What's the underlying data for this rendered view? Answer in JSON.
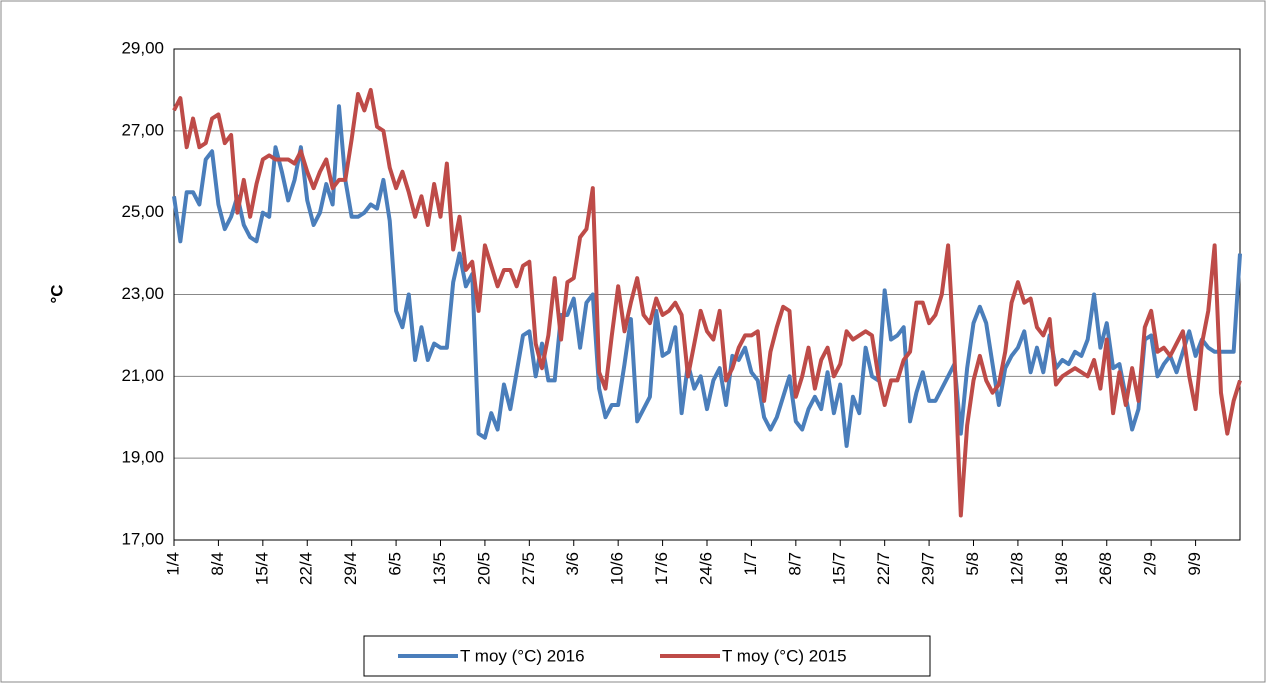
{
  "chart_data": {
    "type": "line",
    "y_label": "°C",
    "categories": [
      "1/4",
      null,
      null,
      null,
      null,
      null,
      null,
      "8/4",
      null,
      null,
      null,
      null,
      null,
      null,
      "15/4",
      null,
      null,
      null,
      null,
      null,
      null,
      "22/4",
      null,
      null,
      null,
      null,
      null,
      null,
      "29/4",
      null,
      null,
      null,
      null,
      null,
      null,
      "6/5",
      null,
      null,
      null,
      null,
      null,
      null,
      "13/5",
      null,
      null,
      null,
      null,
      null,
      null,
      "20/5",
      null,
      null,
      null,
      null,
      null,
      null,
      "27/5",
      null,
      null,
      null,
      null,
      null,
      null,
      "3/6",
      null,
      null,
      null,
      null,
      null,
      null,
      "10/6",
      null,
      null,
      null,
      null,
      null,
      null,
      "17/6",
      null,
      null,
      null,
      null,
      null,
      null,
      "24/6",
      null,
      null,
      null,
      null,
      null,
      null,
      "1/7",
      null,
      null,
      null,
      null,
      null,
      null,
      "8/7",
      null,
      null,
      null,
      null,
      null,
      null,
      "15/7",
      null,
      null,
      null,
      null,
      null,
      null,
      "22/7",
      null,
      null,
      null,
      null,
      null,
      null,
      "29/7",
      null,
      null,
      null,
      null,
      null,
      null,
      "5/8",
      null,
      null,
      null,
      null,
      null,
      null,
      "12/8",
      null,
      null,
      null,
      null,
      null,
      null,
      "19/8",
      null,
      null,
      null,
      null,
      null,
      null,
      "26/8",
      null,
      null,
      null,
      null,
      null,
      null,
      "2/9",
      null,
      null,
      null,
      null,
      null,
      null,
      "9/9",
      null,
      null,
      null,
      null,
      null,
      null,
      null
    ],
    "series": [
      {
        "name": "T moy (°C) 2016",
        "color": "#4a7ebb",
        "values": [
          25.4,
          24.3,
          25.5,
          25.5,
          25.2,
          26.3,
          26.5,
          25.2,
          24.6,
          24.9,
          25.4,
          24.7,
          24.4,
          24.3,
          25.0,
          24.9,
          26.6,
          26.0,
          25.3,
          25.8,
          26.6,
          25.3,
          24.7,
          25.0,
          25.7,
          25.2,
          27.6,
          25.8,
          24.9,
          24.9,
          25.0,
          25.2,
          25.1,
          25.8,
          24.8,
          22.6,
          22.2,
          23.0,
          21.4,
          22.2,
          21.4,
          21.8,
          21.7,
          21.7,
          23.3,
          24.0,
          23.2,
          23.5,
          19.6,
          19.5,
          20.1,
          19.7,
          20.8,
          20.2,
          21.1,
          22.0,
          22.1,
          21.0,
          21.8,
          20.9,
          20.9,
          22.5,
          22.5,
          22.9,
          21.7,
          22.8,
          23.0,
          20.7,
          20.0,
          20.3,
          20.3,
          21.3,
          22.4,
          19.9,
          20.2,
          20.5,
          22.6,
          21.5,
          21.6,
          22.2,
          20.1,
          21.3,
          20.7,
          21.0,
          20.2,
          20.9,
          21.2,
          20.3,
          21.5,
          21.4,
          21.7,
          21.1,
          20.9,
          20.0,
          19.7,
          20.0,
          20.5,
          21.0,
          19.9,
          19.7,
          20.2,
          20.5,
          20.2,
          21.1,
          20.1,
          20.8,
          19.3,
          20.5,
          20.1,
          21.7,
          21.0,
          20.9,
          23.1,
          21.9,
          22.0,
          22.2,
          19.9,
          20.6,
          21.1,
          20.4,
          20.4,
          20.7,
          21.0,
          21.3,
          19.6,
          21.2,
          22.3,
          22.7,
          22.3,
          21.3,
          20.3,
          21.2,
          21.5,
          21.7,
          22.1,
          21.1,
          21.7,
          21.1,
          22.0,
          21.2,
          21.4,
          21.3,
          21.6,
          21.5,
          21.9,
          23.0,
          21.7,
          22.3,
          21.2,
          21.3,
          20.5,
          19.7,
          20.2,
          21.9,
          22.0,
          21.0,
          21.3,
          21.5,
          21.1,
          21.6,
          22.1,
          21.5,
          21.9,
          21.7,
          21.6,
          21.6,
          21.6,
          21.6,
          24.0
        ]
      },
      {
        "name": "T moy (°C) 2015",
        "color": "#be4b48",
        "values": [
          27.5,
          27.8,
          26.6,
          27.3,
          26.6,
          26.7,
          27.3,
          27.4,
          26.7,
          26.9,
          25.0,
          25.8,
          24.9,
          25.7,
          26.3,
          26.4,
          26.3,
          26.3,
          26.3,
          26.2,
          26.5,
          26.0,
          25.6,
          26.0,
          26.3,
          25.6,
          25.8,
          25.8,
          26.8,
          27.9,
          27.5,
          28.0,
          27.1,
          27.0,
          26.1,
          25.6,
          26.0,
          25.5,
          24.9,
          25.4,
          24.7,
          25.7,
          24.9,
          26.2,
          24.1,
          24.9,
          23.6,
          23.8,
          22.6,
          24.2,
          23.7,
          23.2,
          23.6,
          23.6,
          23.2,
          23.7,
          23.8,
          21.8,
          21.2,
          22.0,
          23.4,
          21.9,
          23.3,
          23.4,
          24.4,
          24.6,
          25.6,
          21.1,
          20.7,
          22.0,
          23.2,
          22.1,
          22.8,
          23.4,
          22.5,
          22.3,
          22.9,
          22.5,
          22.6,
          22.8,
          22.5,
          21.0,
          21.8,
          22.6,
          22.1,
          21.9,
          22.6,
          20.9,
          21.2,
          21.7,
          22.0,
          22.0,
          22.1,
          20.4,
          21.6,
          22.2,
          22.7,
          22.6,
          20.5,
          21.0,
          21.7,
          20.7,
          21.4,
          21.7,
          21.0,
          21.3,
          22.1,
          21.9,
          22.0,
          22.1,
          22.0,
          21.0,
          20.3,
          20.9,
          20.9,
          21.4,
          21.6,
          22.8,
          22.8,
          22.3,
          22.5,
          23.0,
          24.2,
          21.5,
          17.6,
          19.8,
          20.9,
          21.5,
          20.9,
          20.6,
          20.8,
          21.6,
          22.8,
          23.3,
          22.8,
          22.9,
          22.2,
          22.0,
          22.4,
          20.8,
          21.0,
          21.1,
          21.2,
          21.1,
          21.0,
          21.4,
          20.7,
          21.9,
          20.1,
          21.1,
          20.3,
          21.2,
          20.4,
          22.2,
          22.6,
          21.6,
          21.7,
          21.5,
          21.8,
          22.1,
          21.0,
          20.2,
          21.8,
          22.6,
          24.2,
          20.6,
          19.6,
          20.4,
          20.9
        ]
      }
    ],
    "ylim": [
      17,
      29
    ],
    "yticks": [
      {
        "value": 17,
        "label": "17,00"
      },
      {
        "value": 19,
        "label": "19,00"
      },
      {
        "value": 21,
        "label": "21,00"
      },
      {
        "value": 23,
        "label": "23,00"
      },
      {
        "value": 25,
        "label": "25,00"
      },
      {
        "value": 27,
        "label": "27,00"
      },
      {
        "value": 29,
        "label": "29,00"
      }
    ],
    "grid": true,
    "legend": "bottom"
  }
}
